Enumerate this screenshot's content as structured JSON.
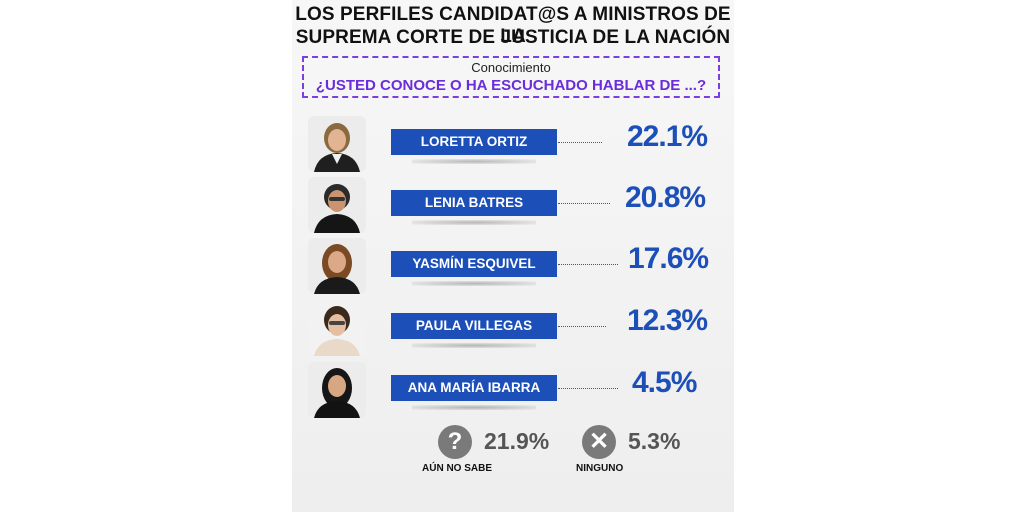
{
  "header": {
    "title_line1": "LOS PERFILES CANDIDAT@S A MINISTROS DE LA",
    "title_line2": "SUPREMA CORTE DE JUSTICIA DE LA NACIÓN"
  },
  "question": {
    "label": "Conocimiento",
    "text": "¿USTED CONOCE O HA ESCUCHADO HABLAR DE ...?"
  },
  "chart_data": {
    "type": "bar",
    "categories": [
      "LORETTA ORTIZ",
      "LENIA BATRES",
      "YASMÍN ESQUIVEL",
      "PAULA VILLEGAS",
      "ANA MARÍA IBARRA"
    ],
    "values": [
      22.1,
      20.8,
      17.6,
      12.3,
      4.5
    ],
    "value_labels": [
      "22.1%",
      "20.8%",
      "17.6%",
      "12.3%",
      "4.5%"
    ],
    "title": "LOS PERFILES CANDIDAT@S A MINISTROS DE LA SUPREMA CORTE DE JUSTICIA DE LA NACIÓN",
    "bar_color": "#1d4fb8",
    "extra": [
      {
        "label": "AÚN NO SABE",
        "value": 21.9,
        "value_label": "21.9%",
        "icon": "question-icon"
      },
      {
        "label": "NINGUNO",
        "value": 5.3,
        "value_label": "5.3%",
        "icon": "x-icon"
      }
    ]
  },
  "colors": {
    "accent_blue": "#1d4fb8",
    "purple": "#7b3fe0",
    "gray_icon": "#7a7a7a"
  }
}
